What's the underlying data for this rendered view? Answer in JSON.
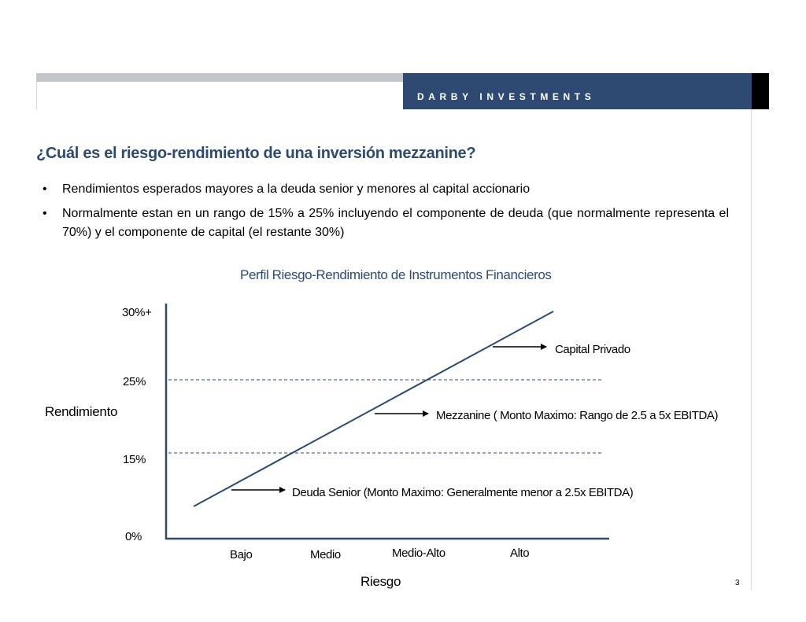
{
  "header": {
    "brand": "DARBY INVESTMENTS",
    "colors": {
      "navy": "#2e4a73",
      "gray_band": "#c3c7cc",
      "black_tab": "#000000"
    }
  },
  "slide": {
    "title": "¿Cuál es el riesgo-rendimiento de una inversión mezzanine?",
    "bullets": [
      "Rendimientos esperados mayores a la deuda senior y menores al capital accionario",
      "Normalmente estan en un rango de 15% a 25% incluyendo el componente de deuda (que normalmente representa el 70%) y el componente de capital (el restante 30%)"
    ],
    "page_number": "3"
  },
  "chart_data": {
    "type": "line",
    "title": "Perfil Riesgo-Rendimiento de Instrumentos Financieros",
    "xlabel": "Riesgo",
    "ylabel": "Rendimiento",
    "y_tick_labels": [
      "0%",
      "15%",
      "25%",
      "30%+"
    ],
    "x_tick_labels": [
      "Bajo",
      "Medio",
      "Medio-Alto",
      "Alto"
    ],
    "reference_lines": [
      15,
      25
    ],
    "annotations": [
      "Capital Privado",
      "Mezzanine ( Monto Maximo: Rango de 2.5 a 5x EBITDA)",
      "Deuda Senior  (Monto Maximo: Generalmente menor a 2.5x EBITDA)"
    ],
    "line_color": "#2e4a73"
  }
}
